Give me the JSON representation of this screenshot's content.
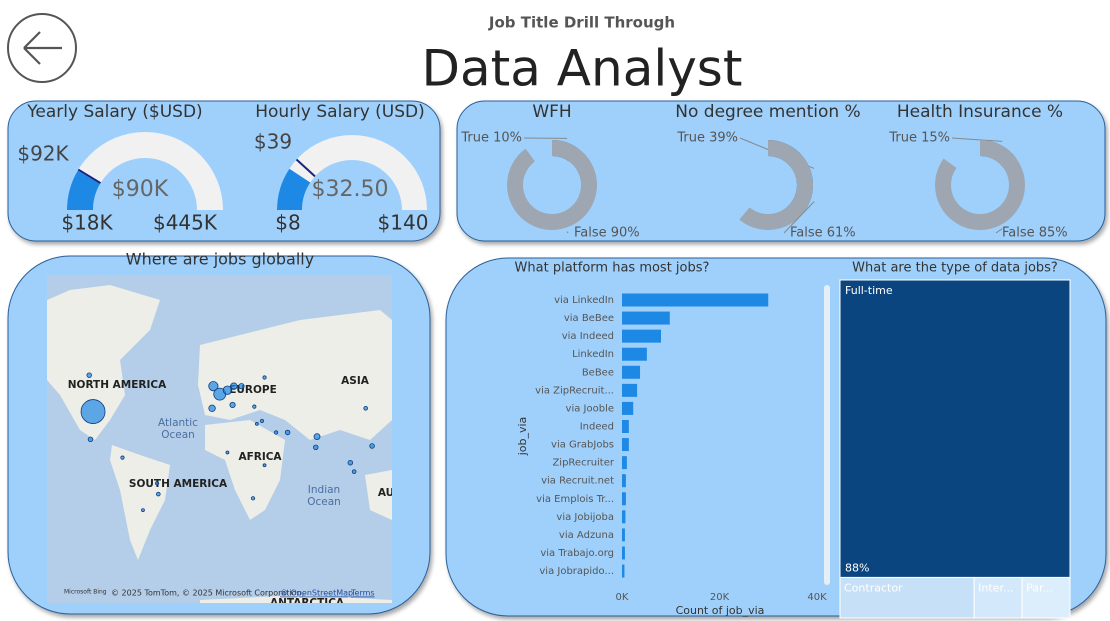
{
  "header": {
    "title": "Job Title Drill Through",
    "job_title": "Data Analyst"
  },
  "chart_data": [
    {
      "type": "gauge",
      "title": "Yearly Salary ($USD)",
      "value": 90000,
      "value_label": "$90K",
      "min": 18000,
      "min_label": "$18K",
      "max": 445000,
      "max_label": "$445K",
      "target": 92000,
      "target_label": "$92K",
      "color": "#1e88e5"
    },
    {
      "type": "gauge",
      "title": "Hourly Salary (USD)",
      "value": 32.5,
      "value_label": "$32.50",
      "min": 8,
      "min_label": "$8",
      "max": 140,
      "max_label": "$140",
      "target": 39,
      "target_label": "$39",
      "color": "#1e88e5"
    },
    {
      "type": "donut",
      "title": "WFH",
      "categories": [
        "True",
        "False"
      ],
      "values": [
        10,
        90
      ],
      "value_labels": [
        "True 10%",
        "False 90%"
      ],
      "colors": [
        "#2a6099",
        "#9ea7b1"
      ]
    },
    {
      "type": "donut",
      "title": "No degree mention %",
      "categories": [
        "True",
        "False"
      ],
      "values": [
        39,
        61
      ],
      "value_labels": [
        "True 39%",
        "False 61%"
      ],
      "colors": [
        "#2a6099",
        "#9ea7b1"
      ]
    },
    {
      "type": "donut",
      "title": "Health Insurance %",
      "categories": [
        "True",
        "False"
      ],
      "values": [
        15,
        85
      ],
      "value_labels": [
        "True 15%",
        "False 85%"
      ],
      "colors": [
        "#2a6099",
        "#9ea7b1"
      ]
    },
    {
      "type": "map",
      "title": "Where are jobs globally",
      "color": "#1e88e5",
      "points": {
        "lon": [
          -97,
          -100,
          -99,
          -74,
          -47,
          -46,
          -58,
          -3,
          2,
          8,
          13,
          -4,
          12,
          19,
          37,
          29,
          35,
          31,
          46,
          55,
          8,
          28,
          37,
          78,
          77,
          116,
          104,
          107,
          121,
          139
        ],
        "lat": [
          38,
          57,
          19,
          5,
          -15,
          -23,
          -34,
          52,
          48,
          50,
          52,
          40,
          42,
          52,
          56,
          41,
          32,
          30,
          24,
          24,
          9,
          -26,
          -1,
          21,
          13,
          40,
          1,
          -6,
          14,
          36
        ],
        "size": [
          400,
          15,
          15,
          8,
          8,
          10,
          6,
          60,
          100,
          50,
          30,
          30,
          20,
          20,
          8,
          8,
          8,
          6,
          8,
          15,
          6,
          8,
          6,
          25,
          15,
          10,
          15,
          10,
          15,
          10
        ]
      },
      "labels": [
        "NORTH AMERICA",
        "EUROPE",
        "ASIA",
        "Atlantic",
        "Ocean",
        "AFRICA",
        "SOUTH AMERICA",
        "Indian",
        "Ocean",
        "AU",
        "ANTARCTICA"
      ],
      "attribution": [
        "Microsoft Bing",
        "© 2025 TomTom, © 2025 Microsoft Corporation,",
        "© OpenStreetMap",
        "Terms"
      ]
    },
    {
      "type": "bar",
      "title": "What platform has most jobs?",
      "orientation": "horizontal",
      "categories": [
        "via LinkedIn",
        "via BeBee",
        "via Indeed",
        "LinkedIn",
        "BeBee",
        "via ZipRecruit...",
        "via Jooble",
        "Indeed",
        "via GrabJobs",
        "ZipRecruiter",
        "via Recruit.net",
        "via Emplois Tr...",
        "via Jobijoba",
        "via Adzuna",
        "via Trabajo.org",
        "via Jobrapido..."
      ],
      "values": [
        30000,
        9800,
        8000,
        5100,
        3700,
        3100,
        2300,
        1400,
        1400,
        1000,
        800,
        800,
        700,
        600,
        600,
        500
      ],
      "xlim": [
        0,
        40000
      ],
      "xticks": [
        {
          "value": 0,
          "label": "0K"
        },
        {
          "value": 20000,
          "label": "20K"
        },
        {
          "value": 40000,
          "label": "40K"
        }
      ],
      "xlabel": "Count of job_via",
      "ylabel": "job_via",
      "color": "#1e88e5"
    },
    {
      "type": "treemap",
      "title": "What are the type of data jobs?",
      "categories": [
        "Full-time",
        "Contractor",
        "Inter...",
        "Par..."
      ],
      "values": [
        88,
        7,
        2.5,
        2.5
      ],
      "value_labels": [
        "88%",
        null,
        null,
        null
      ],
      "colors": [
        "#0b4580",
        "#c6e0f8",
        "#d4e8fb",
        "#dcedfc"
      ]
    }
  ]
}
